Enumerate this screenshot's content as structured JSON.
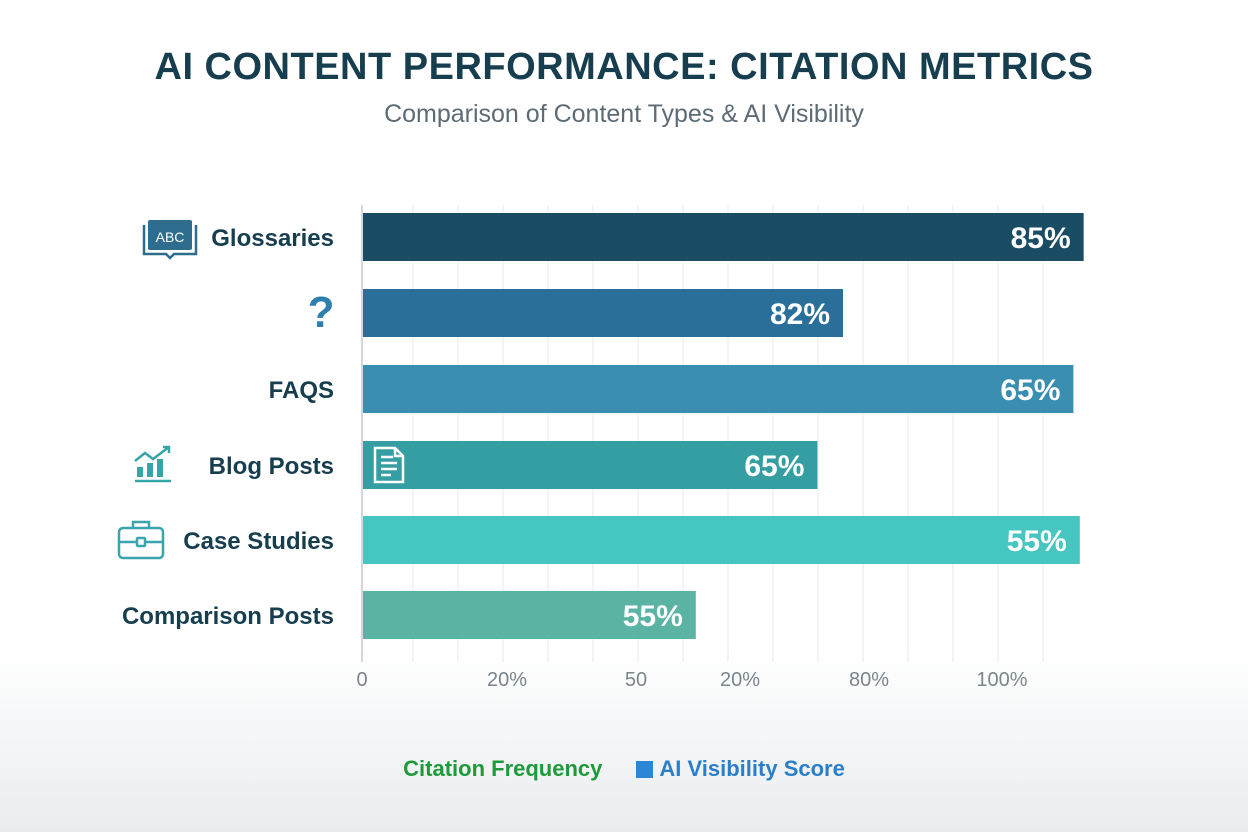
{
  "title": "AI CONTENT PERFORMANCE: CITATION METRICS",
  "subtitle": "Comparison of Content Types & AI Visibility",
  "chart_data": {
    "type": "bar",
    "orientation": "horizontal",
    "title": "AI CONTENT PERFORMANCE: CITATION METRICS",
    "subtitle": "Comparison of Content Types & AI Visibility",
    "categories": [
      "Glossaries",
      "",
      "FAQS",
      "Blog Posts",
      "Case Studies",
      "Comparison Posts"
    ],
    "category_icons": [
      "open-book-abc-icon",
      "question-mark-icon",
      "",
      "trend-chart-icon",
      "briefcase-icon",
      ""
    ],
    "bar_icons": [
      "",
      "",
      "",
      "document-icon",
      "",
      ""
    ],
    "data_labels": [
      "85%",
      "82%",
      "65%",
      "65%",
      "55%",
      "55%"
    ],
    "values": [
      85,
      82,
      65,
      65,
      55,
      55
    ],
    "bar_fill_percent": [
      112.6,
      75,
      111,
      71,
      112,
      52
    ],
    "bar_colors": [
      "#1a4d63",
      "#2a6f9a",
      "#3a8fb1",
      "#359ea2",
      "#45c6c1",
      "#5bb3a4"
    ],
    "x_tick_labels": [
      "0",
      "20%",
      "50",
      "20%",
      "80%",
      "100%"
    ],
    "grid": true,
    "legend": {
      "placement": "bottom",
      "entries": [
        {
          "label": "Citation Frequency",
          "color": "#1f9a3a"
        },
        {
          "label": "AI Visibility Score",
          "color": "#2b86d6"
        }
      ]
    }
  }
}
